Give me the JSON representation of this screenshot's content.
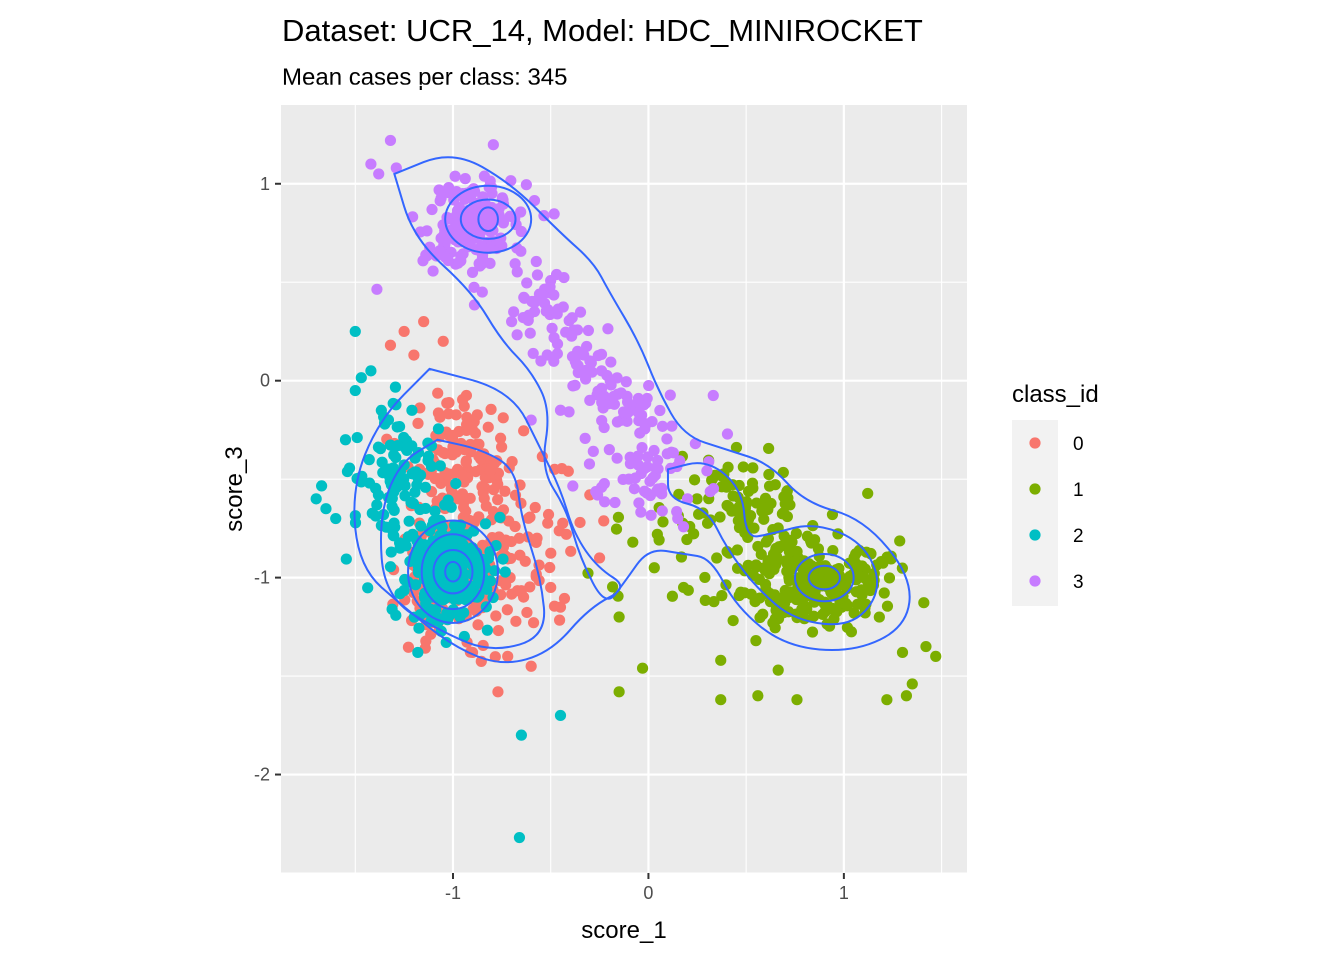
{
  "chart_data": {
    "type": "scatter",
    "title": "Dataset: UCR_14, Model: HDC_MINIROCKET",
    "subtitle": "Mean cases per class: 345",
    "xlabel": "score_1",
    "ylabel": "score_3",
    "xlim": [
      -1.88,
      1.63
    ],
    "ylim": [
      -2.5,
      1.4
    ],
    "x_ticks": [
      -1,
      0,
      1
    ],
    "x_tick_labels": [
      "-1",
      "0",
      "1"
    ],
    "y_ticks": [
      -2,
      -1,
      0,
      1
    ],
    "y_tick_labels": [
      "-2",
      "-1",
      "0",
      "1"
    ],
    "grid": true,
    "panel_background": "#ebebeb",
    "contour_color": "#3366ff",
    "legend": {
      "title": "class_id",
      "position": "right",
      "entries": [
        {
          "label": "0",
          "color": "#f8766d"
        },
        {
          "label": "1",
          "color": "#7cae00"
        },
        {
          "label": "2",
          "color": "#00bfc4"
        },
        {
          "label": "3",
          "color": "#c77cff"
        }
      ]
    },
    "series": [
      {
        "name": "0",
        "color": "#f8766d",
        "n": 345,
        "center": [
          -0.95,
          -0.65
        ],
        "spread": [
          0.22,
          0.28
        ],
        "points": [
          [
            -0.77,
            -1.58
          ],
          [
            -0.48,
            -0.45
          ],
          [
            -0.41,
            -0.46
          ],
          [
            -0.3,
            -0.58
          ],
          [
            -0.57,
            -0.8
          ],
          [
            -1.32,
            0.18
          ],
          [
            -1.25,
            0.25
          ],
          [
            -1.15,
            0.3
          ],
          [
            -1.05,
            0.2
          ],
          [
            -1.2,
            0.13
          ],
          [
            -0.42,
            -0.78
          ],
          [
            -0.35,
            -0.72
          ],
          [
            -0.25,
            -0.9
          ],
          [
            -0.6,
            -1.45
          ],
          [
            -0.72,
            -1.4
          ],
          [
            -0.9,
            -1.38
          ],
          [
            -0.5,
            -1.05
          ],
          [
            -0.45,
            -1.15
          ]
        ]
      },
      {
        "name": "1",
        "color": "#7cae00",
        "n": 345,
        "center": [
          0.85,
          -0.95
        ],
        "spread": [
          0.28,
          0.2
        ],
        "points": [
          [
            -0.15,
            -1.2
          ],
          [
            -0.03,
            -1.46
          ],
          [
            -0.08,
            -0.82
          ],
          [
            0.03,
            -0.95
          ],
          [
            0.18,
            -1.05
          ],
          [
            0.37,
            -1.62
          ],
          [
            0.37,
            -1.42
          ],
          [
            0.56,
            -1.6
          ],
          [
            0.76,
            -1.62
          ],
          [
            1.22,
            -1.62
          ],
          [
            1.32,
            -1.6
          ],
          [
            1.35,
            -1.54
          ],
          [
            1.47,
            -1.4
          ],
          [
            1.42,
            -1.35
          ],
          [
            1.3,
            -1.38
          ],
          [
            -0.15,
            -1.58
          ],
          [
            0.55,
            -1.32
          ]
        ]
      },
      {
        "name": "2",
        "color": "#00bfc4",
        "n": 345,
        "center": [
          -1.0,
          -0.95
        ],
        "spread": [
          0.15,
          0.17
        ],
        "points": [
          [
            -0.65,
            -1.8
          ],
          [
            -0.45,
            -1.7
          ],
          [
            -0.66,
            -2.32
          ],
          [
            -1.5,
            -0.05
          ],
          [
            -1.42,
            0.05
          ],
          [
            -1.5,
            0.25
          ],
          [
            -1.55,
            -0.3
          ],
          [
            -1.7,
            -0.6
          ],
          [
            -1.6,
            -0.7
          ],
          [
            -1.65,
            -0.65
          ],
          [
            -1.18,
            -1.38
          ]
        ]
      },
      {
        "name": "3",
        "color": "#c77cff",
        "n": 345,
        "center": [
          -0.5,
          0.4
        ],
        "spread": [
          0.4,
          0.3
        ],
        "points": [
          [
            -1.32,
            1.22
          ],
          [
            -1.42,
            1.1
          ],
          [
            -1.38,
            1.05
          ],
          [
            -1.29,
            1.08
          ],
          [
            -0.9,
            0.55
          ],
          [
            -0.85,
            0.45
          ],
          [
            -0.7,
            0.3
          ],
          [
            -0.55,
            0.1
          ],
          [
            -0.6,
            -0.2
          ],
          [
            -0.45,
            -0.15
          ],
          [
            -0.3,
            -0.1
          ],
          [
            -0.2,
            -0.35
          ],
          [
            -0.1,
            -0.5
          ],
          [
            0.05,
            -0.55
          ],
          [
            0.2,
            -0.6
          ],
          [
            0.15,
            -0.7
          ]
        ]
      }
    ],
    "density_contours": [
      {
        "center": [
          -1.0,
          -0.97
        ],
        "levels": [
          [
            0.04,
            0.05
          ],
          [
            0.1,
            0.11
          ],
          [
            0.16,
            0.19
          ],
          [
            0.23,
            0.26
          ]
        ]
      },
      {
        "center": [
          -0.82,
          0.82
        ],
        "levels": [
          [
            0.05,
            0.06
          ],
          [
            0.14,
            0.1
          ],
          [
            0.22,
            0.17
          ]
        ]
      },
      {
        "center": [
          0.9,
          -1.0
        ],
        "levels": [
          [
            0.08,
            0.06
          ],
          [
            0.15,
            0.12
          ]
        ]
      }
    ]
  }
}
